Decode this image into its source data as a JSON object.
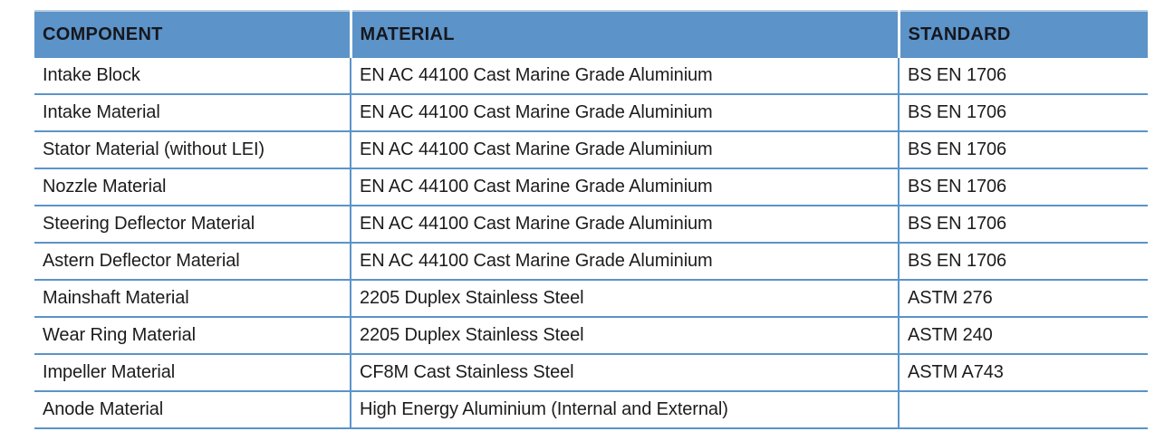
{
  "table": {
    "columns": [
      {
        "label": "COMPONENT"
      },
      {
        "label": "MATERIAL"
      },
      {
        "label": "STANDARD"
      }
    ],
    "rows": [
      {
        "component": "Intake Block",
        "material": "EN AC 44100 Cast Marine Grade Aluminium",
        "standard": "BS EN 1706"
      },
      {
        "component": "Intake Material",
        "material": "EN AC 44100 Cast Marine Grade Aluminium",
        "standard": "BS EN 1706"
      },
      {
        "component": "Stator Material (without LEI)",
        "material": "EN AC 44100 Cast Marine Grade Aluminium",
        "standard": "BS EN 1706"
      },
      {
        "component": "Nozzle Material",
        "material": "EN AC 44100 Cast Marine Grade Aluminium",
        "standard": "BS EN 1706"
      },
      {
        "component": "Steering Deflector Material",
        "material": "EN AC 44100 Cast Marine Grade Aluminium",
        "standard": "BS EN 1706"
      },
      {
        "component": "Astern Deflector Material",
        "material": "EN AC 44100 Cast Marine Grade Aluminium",
        "standard": "BS EN 1706"
      },
      {
        "component": "Mainshaft Material",
        "material": "2205 Duplex Stainless Steel",
        "standard": "ASTM 276"
      },
      {
        "component": "Wear Ring Material",
        "material": "2205 Duplex Stainless Steel",
        "standard": "ASTM 240"
      },
      {
        "component": "Impeller Material",
        "material": "CF8M Cast Stainless Steel",
        "standard": "ASTM A743"
      },
      {
        "component": "Anode Material",
        "material": "High Energy Aluminium (Internal and External)",
        "standard": ""
      }
    ],
    "colors": {
      "header_bg": "#5C93C8",
      "grid_line": "#5B94C9",
      "header_text": "#16171d",
      "body_text": "#1c1c1e"
    }
  }
}
